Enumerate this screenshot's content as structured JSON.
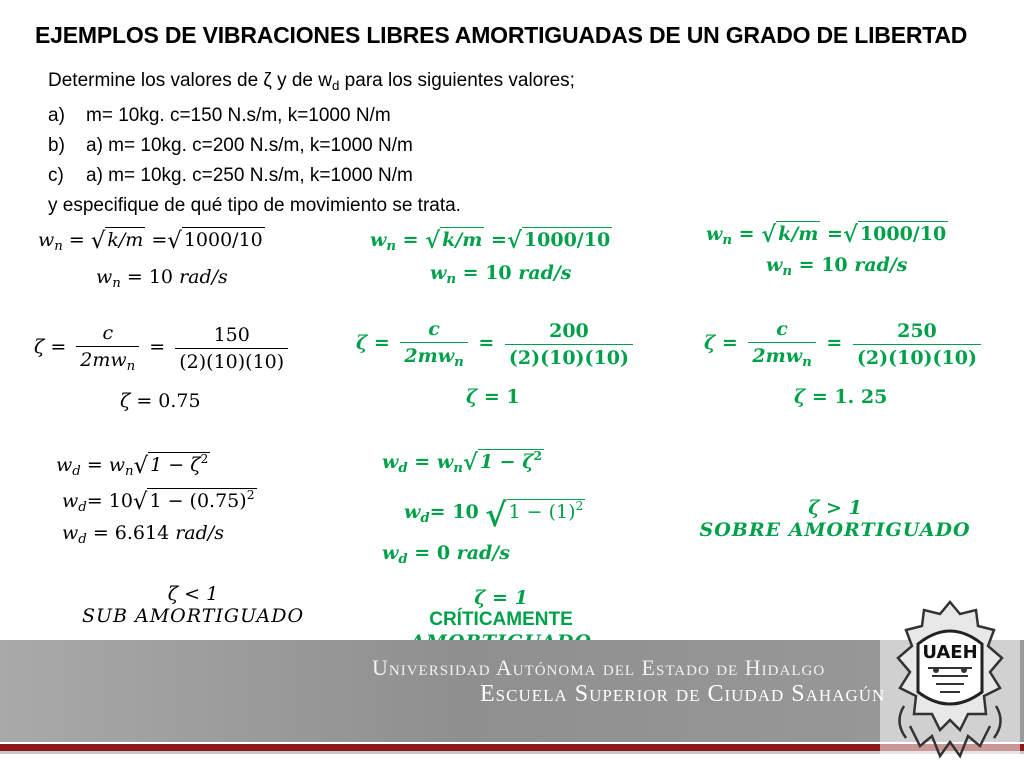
{
  "title": "EJEMPLOS DE VIBRACIONES LIBRES AMORTIGUADAS DE UN GRADO DE LIBERTAD",
  "intro": {
    "line1": "Determine los valores de ζ y de w",
    "line1_sub": "d",
    "line1_end": " para los siguientes valores;",
    "items": [
      {
        "label": "a)",
        "text": "m= 10kg.   c=150 N.s/m,    k=1000 N/m"
      },
      {
        "label": "b)",
        "text": "a) m= 10kg.   c=200 N.s/m,    k=1000 N/m"
      },
      {
        "label": "c)",
        "text": "a) m= 10kg.   c=250 N.s/m,    k=1000 N/m"
      }
    ],
    "closing": "y especifique de qué tipo de movimiento se trata."
  },
  "wn": {
    "k_over_m": "k/m",
    "value_expr": "1000/10",
    "result": "10",
    "unit": "rad/s"
  },
  "case_a": {
    "c": "150",
    "den": "(2)(10)(10)",
    "zeta": "0.75",
    "wd_line2_coef": "10",
    "wd_line2_rad": "1 − (0.75)",
    "wd_result": "6.614",
    "cond": "ζ < 1",
    "type": "SUB AMORTIGUADO"
  },
  "case_b": {
    "c": "200",
    "den": "(2)(10)(10)",
    "zeta": "1",
    "wd_line2_coef": "10",
    "wd_line2_rad": "1 − (1)",
    "wd_result": "0",
    "cond": "ζ = 1",
    "type_line1": "CRÍTICAMENTE",
    "type_line2": "AMORTIGUADO"
  },
  "case_c": {
    "c": "250",
    "den": "(2)(10)(10)",
    "zeta": "1. 25",
    "cond": "ζ > 1",
    "type": "SOBRE AMORTIGUADO"
  },
  "footer": {
    "university": "Universidad Autónoma del Estado de Hidalgo",
    "school": "Escuela Superior de Ciudad Sahagún",
    "logo_text": "UAEH"
  }
}
